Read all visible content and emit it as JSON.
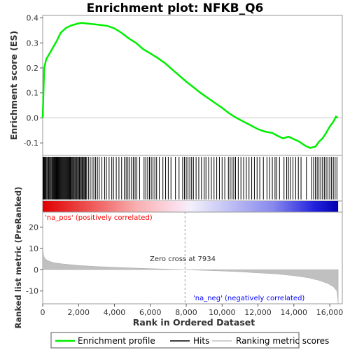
{
  "title": "Enrichment plot: NFKB_Q6",
  "chart_data": [
    {
      "type": "line",
      "panel": "enrichment",
      "ylabel": "Enrichment score (ES)",
      "xlim": [
        0,
        16700
      ],
      "ylim": [
        -0.15,
        0.41
      ],
      "yticks": [
        -0.1,
        0.0,
        0.1,
        0.2,
        0.3,
        0.4
      ],
      "ytick_labels": [
        "-0.1",
        "0.0",
        "0.1",
        "0.2",
        "0.3",
        "0.4"
      ],
      "color": "#00ee00",
      "series": [
        {
          "name": "Enrichment profile",
          "x": [
            0,
            80,
            200,
            400,
            600,
            800,
            1000,
            1300,
            1600,
            2000,
            2200,
            2400,
            2800,
            3200,
            3600,
            4000,
            4400,
            4800,
            5200,
            5600,
            6000,
            6400,
            6800,
            7200,
            7600,
            8000,
            8400,
            8800,
            9200,
            9600,
            10000,
            10400,
            10800,
            11200,
            11600,
            12000,
            12400,
            12800,
            13100,
            13400,
            13700,
            14000,
            14300,
            14600,
            14900,
            15200,
            15400,
            15600,
            15800,
            16000,
            16200,
            16350,
            16450
          ],
          "y": [
            0.0,
            0.2,
            0.235,
            0.26,
            0.285,
            0.31,
            0.34,
            0.36,
            0.37,
            0.378,
            0.38,
            0.378,
            0.375,
            0.372,
            0.368,
            0.358,
            0.34,
            0.318,
            0.3,
            0.275,
            0.258,
            0.24,
            0.22,
            0.195,
            0.17,
            0.145,
            0.123,
            0.1,
            0.08,
            0.06,
            0.04,
            0.018,
            0.0,
            -0.015,
            -0.03,
            -0.045,
            -0.055,
            -0.06,
            -0.072,
            -0.082,
            -0.075,
            -0.085,
            -0.095,
            -0.11,
            -0.12,
            -0.115,
            -0.095,
            -0.082,
            -0.06,
            -0.035,
            -0.015,
            0.005,
            0.0
          ]
        }
      ]
    },
    {
      "type": "scatter",
      "panel": "hits",
      "series": [
        {
          "name": "Hits",
          "color": "#000000",
          "x": [
            20,
            60,
            100,
            140,
            180,
            230,
            280,
            330,
            380,
            420,
            470,
            520,
            560,
            600,
            640,
            680,
            720,
            760,
            800,
            840,
            880,
            920,
            960,
            1000,
            1040,
            1080,
            1120,
            1160,
            1200,
            1240,
            1280,
            1320,
            1360,
            1400,
            1440,
            1480,
            1520,
            1560,
            1600,
            1650,
            1700,
            1750,
            1800,
            1850,
            1900,
            1950,
            2000,
            2050,
            2100,
            2150,
            2200,
            2250,
            2300,
            2350,
            2400,
            2450,
            2550,
            2650,
            2750,
            2850,
            2950,
            3050,
            3150,
            3300,
            3450,
            3550,
            3700,
            3850,
            3950,
            4100,
            4250,
            4400,
            4550,
            4650,
            4750,
            4850,
            4950,
            5050,
            5150,
            5250,
            5400,
            5650,
            5750,
            5850,
            5950,
            6050,
            6150,
            6250,
            6350,
            6500,
            6700,
            6850,
            7000,
            7150,
            7400,
            7600,
            7800,
            7900,
            8000,
            8100,
            8200,
            8300,
            8400,
            8550,
            8700,
            8850,
            9000,
            9100,
            9250,
            9400,
            9550,
            9700,
            9850,
            10000,
            10150,
            10350,
            10450,
            10550,
            10650,
            10750,
            10900,
            11050,
            11200,
            11350,
            11500,
            11650,
            11800,
            11950,
            12100,
            12300,
            12500,
            12650,
            12800,
            12950,
            13050,
            13200,
            13450,
            13600,
            13700,
            13800,
            13950,
            14100,
            14250,
            14400,
            14700,
            15000,
            15100,
            15200,
            15300,
            15400,
            15500,
            15600,
            15700,
            15800,
            15900,
            16000,
            16100,
            16200,
            16300,
            16400
          ]
        }
      ]
    },
    {
      "type": "area",
      "panel": "ranked_metric",
      "xlabel": "Rank in Ordered Dataset",
      "ylabel": "Ranked list metric (PreRanked)",
      "xlim": [
        0,
        16700
      ],
      "ylim": [
        -16,
        27
      ],
      "yticks": [
        -10,
        0,
        10,
        20
      ],
      "ytick_labels": [
        "-10",
        "0",
        "10",
        "20"
      ],
      "xticks": [
        0,
        2000,
        4000,
        6000,
        8000,
        10000,
        12000,
        14000,
        16000
      ],
      "xtick_labels": [
        "0",
        "2,000",
        "4,000",
        "6,000",
        "8,000",
        "10,000",
        "12,000",
        "14,000",
        "16,000"
      ],
      "color": "#c0c0c0",
      "series": [
        {
          "name": "Ranking metric scores",
          "x": [
            0,
            10,
            50,
            150,
            300,
            600,
            1000,
            2000,
            3000,
            4000,
            5000,
            6000,
            7000,
            7934,
            9000,
            10000,
            11000,
            12000,
            13000,
            14000,
            14800,
            15400,
            15900,
            16200,
            16400,
            16450,
            16470
          ],
          "y": [
            26,
            10,
            6.5,
            5,
            4.2,
            3.3,
            2.8,
            2.0,
            1.5,
            1.1,
            0.8,
            0.5,
            0.25,
            0.0,
            -0.3,
            -0.6,
            -1.0,
            -1.5,
            -2.0,
            -2.8,
            -3.8,
            -5.0,
            -6.5,
            -8.0,
            -10.0,
            -14.0,
            -16.0
          ]
        }
      ],
      "annotations": {
        "pos_label": "'na_pos' (positively correlated)",
        "neg_label": "'na_neg' (negatively correlated)",
        "zero_cross_label": "Zero cross at 7934",
        "zero_cross_x": 7934,
        "pos_color": "#ff0000",
        "neg_color": "#0000ff"
      }
    }
  ],
  "legend": {
    "items": [
      {
        "label": "Enrichment profile",
        "color": "#00ee00"
      },
      {
        "label": "Hits",
        "color": "#000000"
      },
      {
        "label": "Ranking metric scores",
        "color": "#c0c0c0"
      }
    ]
  }
}
